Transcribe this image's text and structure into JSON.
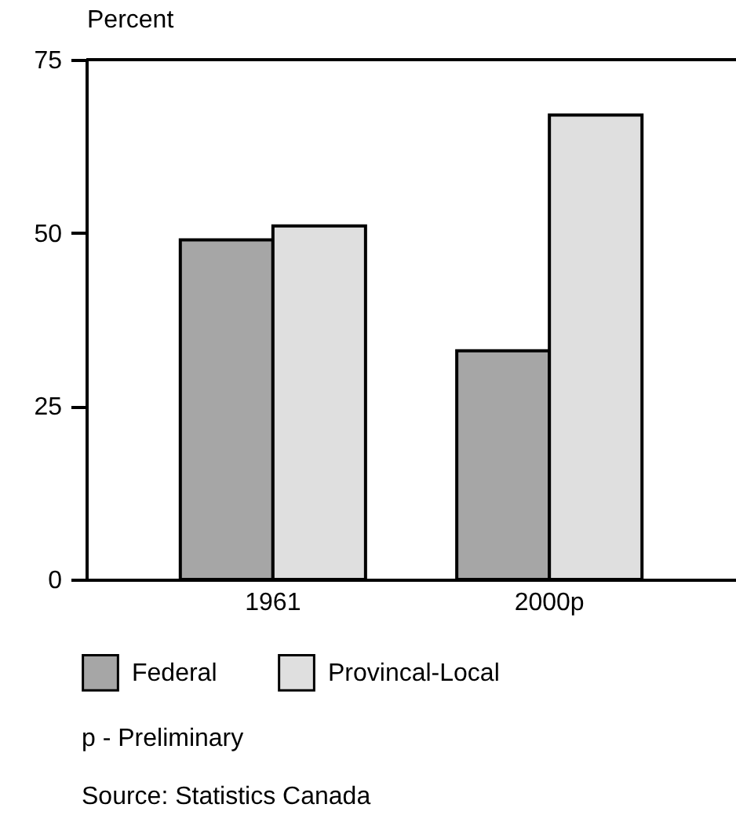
{
  "chart_data": {
    "type": "bar",
    "ylabel": "Percent",
    "categories": [
      "1961",
      "2000p"
    ],
    "series": [
      {
        "name": "Federal",
        "color": "#a6a6a6",
        "values": [
          49,
          33
        ]
      },
      {
        "name": "Provincal-Local",
        "color": "#dfdfdf",
        "values": [
          51,
          67
        ]
      }
    ],
    "ylim": [
      0,
      75
    ],
    "yticks": [
      0,
      25,
      50,
      75
    ],
    "grid": false,
    "legend": "bottom",
    "annotations": [
      "p - Preliminary",
      "Source:  Statistics Canada"
    ]
  }
}
